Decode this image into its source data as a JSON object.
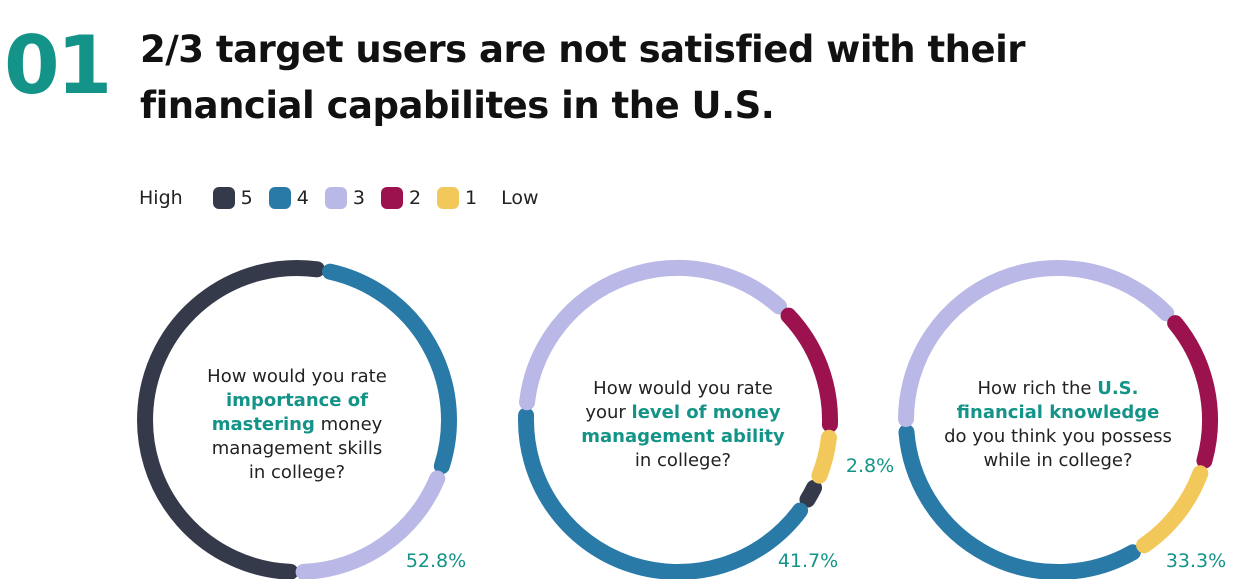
{
  "header": {
    "number": "01",
    "title": "2/3 target users are not satisfied with their financial capabilites in the U.S."
  },
  "legend": {
    "high_label": "High",
    "low_label": "Low",
    "items": [
      {
        "label": "5",
        "color": "#343a4a"
      },
      {
        "label": "4",
        "color": "#2a7aa8"
      },
      {
        "label": "3",
        "color": "#b9b8e6"
      },
      {
        "label": "2",
        "color": "#9b124e"
      },
      {
        "label": "1",
        "color": "#f3c85a"
      }
    ]
  },
  "chart_data": [
    {
      "type": "pie",
      "question": {
        "pre": "How would you rate ",
        "highlight": "importance of mastering",
        "post": " money management skills in college?"
      },
      "slices": [
        {
          "label": "5",
          "value": 52.8,
          "color": "#343a4a"
        },
        {
          "label": "4",
          "value": 27.8,
          "color": "#2a7aa8"
        },
        {
          "label": "3",
          "value": 19.4,
          "color": "#b9b8e6"
        }
      ],
      "annotations": [
        {
          "text": "52.8%",
          "slice": 0
        }
      ]
    },
    {
      "type": "pie",
      "question": {
        "pre": "How would you rate your ",
        "highlight": "level of money management ability",
        "post": " in college?"
      },
      "slices": [
        {
          "label": "5",
          "value": 2.8,
          "color": "#343a4a"
        },
        {
          "label": "4",
          "value": 41.7,
          "color": "#2a7aa8"
        },
        {
          "label": "3",
          "value": 36.1,
          "color": "#b9b8e6"
        },
        {
          "label": "2",
          "value": 13.9,
          "color": "#9b124e"
        },
        {
          "label": "1",
          "value": 5.5,
          "color": "#f3c85a"
        }
      ],
      "annotations": [
        {
          "text": "2.8%",
          "slice": 0
        },
        {
          "text": "41.7%",
          "slice": 1
        }
      ]
    },
    {
      "type": "pie",
      "question": {
        "pre": "How rich the ",
        "highlight": "U.S. financial knowledge",
        "post": " do you think you possess while in college?"
      },
      "slices": [
        {
          "label": "4",
          "value": 33.3,
          "color": "#2a7aa8"
        },
        {
          "label": "3",
          "value": 38.9,
          "color": "#b9b8e6"
        },
        {
          "label": "2",
          "value": 16.7,
          "color": "#9b124e"
        },
        {
          "label": "1",
          "value": 11.1,
          "color": "#f3c85a"
        }
      ],
      "annotations": [
        {
          "text": "33.3%",
          "slice": 0
        }
      ]
    }
  ]
}
